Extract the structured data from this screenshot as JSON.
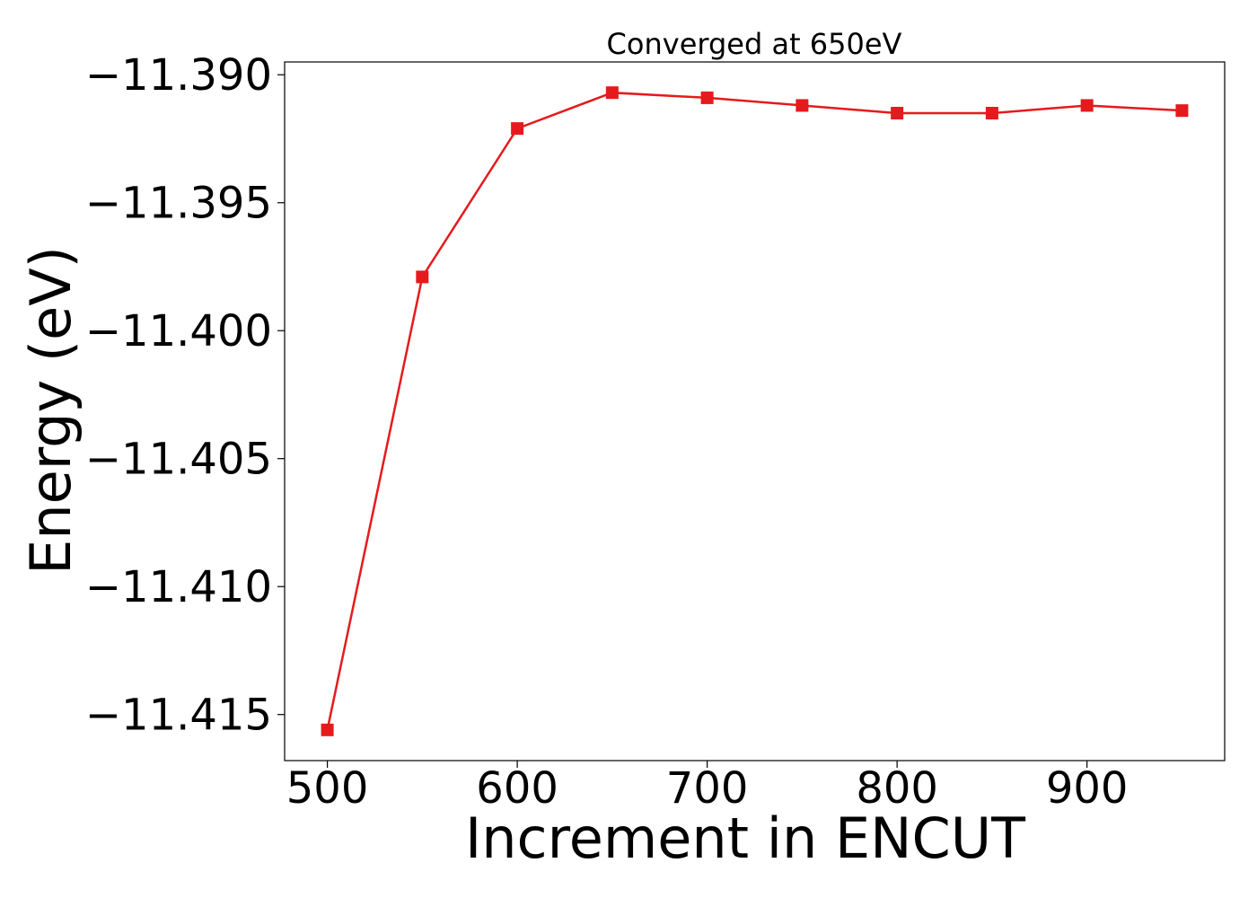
{
  "chart_data": {
    "type": "line",
    "title": "Converged at 650eV",
    "xlabel": "Increment in ENCUT",
    "ylabel": "Energy (eV)",
    "xlim": [
      477.5,
      972.5
    ],
    "ylim": [
      -11.4168,
      -11.3895
    ],
    "x_ticks": [
      500,
      600,
      700,
      800,
      900
    ],
    "x_tick_labels": [
      "500",
      "600",
      "700",
      "800",
      "900"
    ],
    "y_ticks": [
      -11.39,
      -11.395,
      -11.4,
      -11.405,
      -11.41,
      -11.415
    ],
    "y_tick_labels": [
      "−11.390",
      "−11.395",
      "−11.400",
      "−11.405",
      "−11.410",
      "−11.415"
    ],
    "grid": false,
    "series": [
      {
        "color": "#e41a1c",
        "marker": "square",
        "x": [
          500,
          550,
          600,
          650,
          700,
          750,
          800,
          850,
          900,
          950
        ],
        "y": [
          -11.4156,
          -11.3979,
          -11.3921,
          -11.3907,
          -11.3909,
          -11.3912,
          -11.3915,
          -11.3915,
          -11.3912,
          -11.3914
        ]
      }
    ]
  }
}
